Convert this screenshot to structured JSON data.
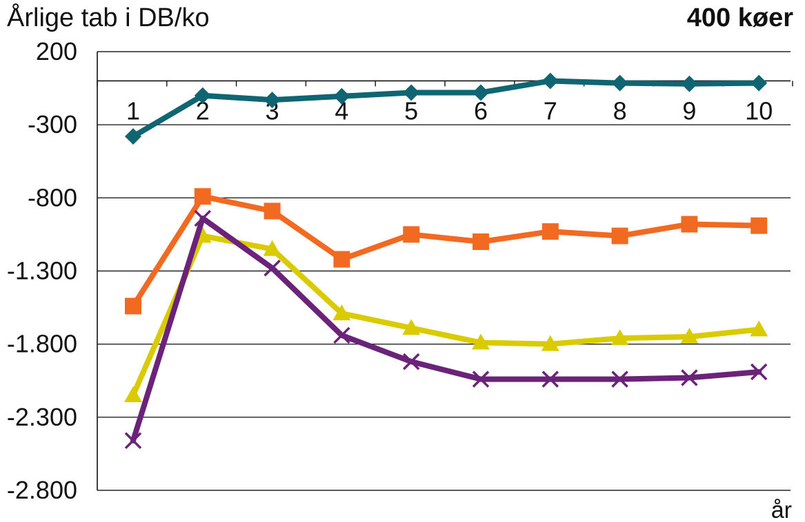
{
  "chart_data": {
    "type": "line",
    "ylabel": "Årlige tab i DB/ko",
    "corner_title": "400 køer",
    "xlabel": "år",
    "categories": [
      "1",
      "2",
      "3",
      "4",
      "5",
      "6",
      "7",
      "8",
      "9",
      "10"
    ],
    "ylim": [
      -2800,
      200
    ],
    "yticks": [
      200,
      -300,
      -800,
      -1300,
      -1800,
      -2300,
      -2800
    ],
    "ytick_labels": [
      "200",
      "-300",
      "-800",
      "-1.300",
      "-1.800",
      "-2.300",
      "-2.800"
    ],
    "grid": true,
    "series": [
      {
        "color": "#0f6672",
        "marker": "diamond",
        "values": [
          -380,
          -100,
          -130,
          -105,
          -80,
          -80,
          0,
          -15,
          -20,
          -15
        ]
      },
      {
        "color": "#f26a22",
        "marker": "square",
        "values": [
          -1540,
          -790,
          -890,
          -1220,
          -1050,
          -1100,
          -1030,
          -1060,
          -980,
          -990
        ]
      },
      {
        "color": "#d9cb00",
        "marker": "triangle",
        "values": [
          -2150,
          -1060,
          -1150,
          -1590,
          -1690,
          -1790,
          -1800,
          -1760,
          -1750,
          -1700
        ]
      },
      {
        "color": "#6a2379",
        "marker": "x",
        "values": [
          -2460,
          -940,
          -1280,
          -1740,
          -1920,
          -2040,
          -2040,
          -2040,
          -2030,
          -1990
        ]
      }
    ]
  }
}
